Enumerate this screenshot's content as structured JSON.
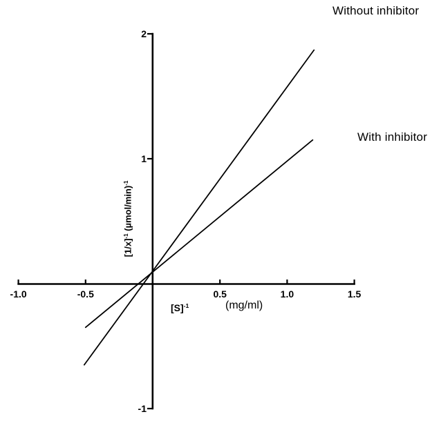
{
  "chart_data": {
    "type": "line",
    "title": "",
    "background": "#ffffff",
    "line_color": "#000000",
    "grid": false,
    "legend_position": "annotations-right",
    "xlabel_segments": [
      {
        "t": "[S]"
      },
      {
        "t": "-1",
        "sup": true
      }
    ],
    "xlabel_units_segments": [
      {
        "t": "(mg/ml)"
      }
    ],
    "ylabel_segments": [
      {
        "t": "[1/x]"
      },
      {
        "t": "-1",
        "sup": true
      },
      {
        "t": " (µmol/min)"
      },
      {
        "t": "-1",
        "sup": true
      }
    ],
    "xlim": [
      -1.0,
      1.5
    ],
    "ylim": [
      -1,
      2
    ],
    "x_ticks": [
      {
        "value": -1.0,
        "label": "-1.0"
      },
      {
        "value": -0.5,
        "label": "-0.5"
      },
      {
        "value": 0.5,
        "label": "0.5"
      },
      {
        "value": 1.0,
        "label": "1.0"
      },
      {
        "value": 1.5,
        "label": "1.5"
      }
    ],
    "y_ticks": [
      {
        "value": 2,
        "label": "2"
      },
      {
        "value": 1,
        "label": "1"
      },
      {
        "value": -1,
        "label": "-1"
      }
    ],
    "series": [
      {
        "name": "Without inhibitor",
        "points": [
          [
            -0.51,
            -0.65
          ],
          [
            1.2,
            1.87
          ]
        ]
      },
      {
        "name": "With inhibitor",
        "points": [
          [
            -0.5,
            -0.35
          ],
          [
            1.19,
            1.15
          ]
        ]
      }
    ]
  }
}
